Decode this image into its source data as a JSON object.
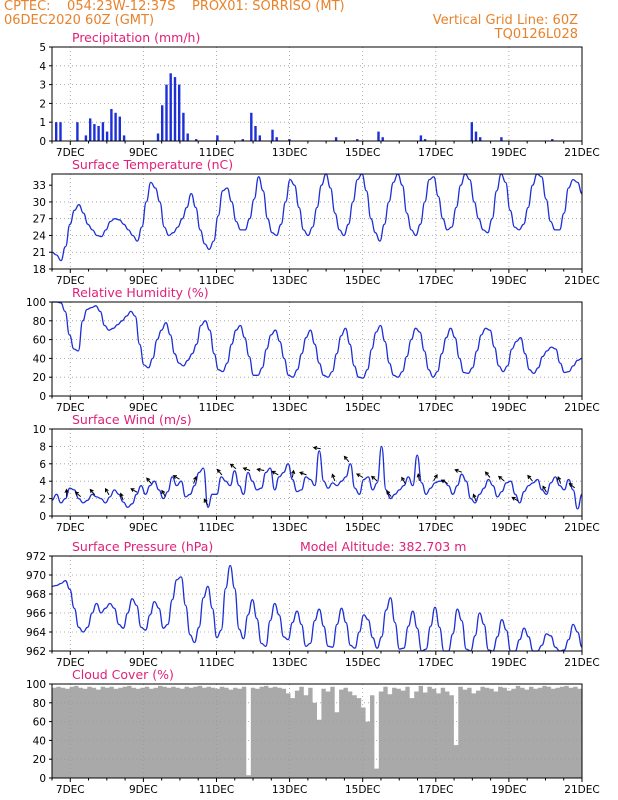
{
  "header": {
    "line1": "CPTEC:    054:23W-12:37S    PROX01: SORRISO (MT)",
    "line2": "06DEC2020 60Z (GMT)",
    "grid_note": "Vertical Grid Line: 60Z",
    "code": "TQ0126L028"
  },
  "colors": {
    "header": "#e8822a",
    "title": "#e0207a",
    "series": "#1d2fd6",
    "cloud": "#a9a9a9",
    "grid": "#9a9a9a"
  },
  "x_ticks": [
    "7DEC",
    "9DEC",
    "11DEC",
    "13DEC",
    "15DEC",
    "17DEC",
    "19DEC",
    "21DEC"
  ],
  "chart_data": [
    {
      "type": "bar",
      "title": "Precipitation (mm/h)",
      "xlim": [
        "06DEC2020 12Z",
        "21DEC2020 00Z"
      ],
      "ylim": [
        0,
        5
      ],
      "yticks": [
        "0",
        "1",
        "2",
        "3",
        "4",
        "5"
      ],
      "grid": true,
      "time_step_hours": 3,
      "values": [
        0,
        1,
        1,
        0,
        0,
        0,
        1,
        0,
        0.3,
        1.2,
        0.9,
        0.8,
        1,
        0.5,
        1.7,
        1.5,
        1.3,
        0.3,
        0,
        0,
        0,
        0,
        0,
        0,
        0,
        0.4,
        1.9,
        3,
        3.6,
        3.4,
        3,
        1.5,
        0.4,
        0,
        0.1,
        0,
        0,
        0,
        0,
        0.3,
        0,
        0,
        0,
        0,
        0,
        0.1,
        0,
        1.5,
        0.8,
        0.3,
        0,
        0,
        0.6,
        0.2,
        0,
        0,
        0.1,
        0,
        0,
        0,
        0,
        0,
        0,
        0,
        0,
        0,
        0,
        0.2,
        0,
        0,
        0,
        0,
        0.1,
        0,
        0,
        0,
        0,
        0.5,
        0.2,
        0,
        0,
        0,
        0,
        0,
        0,
        0,
        0,
        0.3,
        0.1,
        0,
        0,
        0,
        0,
        0,
        0,
        0,
        0,
        0,
        0,
        1,
        0.5,
        0.2,
        0,
        0,
        0,
        0,
        0.2,
        0,
        0,
        0,
        0,
        0,
        0,
        0,
        0,
        0,
        0,
        0,
        0.1,
        0,
        0,
        0,
        0,
        0,
        0,
        0
      ]
    },
    {
      "type": "line",
      "title": "Surface Temperature (nC)",
      "ylim": [
        18,
        35
      ],
      "yticks": [
        "18",
        "21",
        "24",
        "27",
        "30",
        "33"
      ],
      "grid": true,
      "values": [
        21,
        20.5,
        19.5,
        22,
        26,
        28.5,
        29.5,
        28,
        26,
        25,
        24,
        23.8,
        25,
        26.5,
        27,
        26.8,
        26,
        25,
        24,
        23,
        25.5,
        30,
        33.5,
        32.5,
        30,
        25.5,
        24,
        24.5,
        25.5,
        27,
        29,
        31.5,
        29,
        25,
        22.5,
        21.5,
        23,
        27.5,
        32,
        32.5,
        30,
        26.5,
        25,
        25,
        27,
        30.5,
        34.5,
        32,
        27,
        24.5,
        24,
        26,
        30,
        34,
        33,
        29,
        25,
        24,
        25.5,
        29,
        33,
        35,
        32.5,
        28,
        25,
        24,
        26,
        30,
        34,
        35.5,
        32,
        27,
        24.5,
        23,
        26,
        30,
        33.5,
        35.5,
        33,
        28,
        25,
        24,
        26,
        30,
        34,
        34.5,
        31,
        27,
        25,
        25.5,
        29,
        33,
        35,
        34,
        30,
        27,
        25,
        24.5,
        27,
        32,
        35,
        33.5,
        28.5,
        25.5,
        25,
        26,
        29,
        33,
        35,
        34.5,
        30.5,
        26.5,
        25,
        25,
        28,
        32.5,
        34,
        33.5,
        31.5
      ]
    },
    {
      "type": "line",
      "title": "Relative Humidity (%)",
      "ylim": [
        0,
        100
      ],
      "yticks": [
        "0",
        "20",
        "40",
        "60",
        "80",
        "100"
      ],
      "grid": true,
      "values": [
        100,
        100,
        99,
        90,
        65,
        50,
        48,
        80,
        92,
        94,
        96,
        90,
        75,
        70,
        72,
        76,
        80,
        85,
        90,
        85,
        55,
        33,
        30,
        40,
        60,
        70,
        78,
        65,
        45,
        35,
        32,
        38,
        45,
        55,
        75,
        80,
        70,
        45,
        28,
        26,
        35,
        55,
        70,
        75,
        62,
        42,
        22,
        22,
        30,
        50,
        65,
        70,
        58,
        40,
        22,
        20,
        28,
        45,
        62,
        70,
        55,
        35,
        22,
        20,
        26,
        45,
        64,
        72,
        55,
        32,
        20,
        19,
        28,
        50,
        68,
        75,
        58,
        35,
        22,
        20,
        26,
        42,
        60,
        72,
        68,
        48,
        28,
        20,
        26,
        45,
        62,
        72,
        62,
        40,
        25,
        24,
        30,
        48,
        65,
        72,
        70,
        52,
        32,
        26,
        32,
        50,
        58,
        62,
        45,
        28,
        24,
        30,
        42,
        48,
        52,
        50,
        35,
        25,
        26,
        32,
        38,
        40
      ]
    },
    {
      "type": "line",
      "title": "Surface Wind (m/s)",
      "ylim": [
        0,
        10
      ],
      "yticks": [
        "0",
        "2",
        "4",
        "6",
        "8",
        "10"
      ],
      "grid": true,
      "values": [
        1.8,
        2.5,
        1.5,
        2,
        3.2,
        3,
        2,
        1.5,
        1.8,
        2.5,
        2.2,
        2,
        1.5,
        2.2,
        3,
        2.5,
        1.6,
        1,
        1.4,
        2.5,
        3.5,
        2.5,
        3.5,
        4,
        3,
        2,
        2.8,
        4.5,
        3.5,
        4,
        2.2,
        2.5,
        3.5,
        5,
        5.5,
        1,
        2.5,
        2.5,
        4.5,
        4,
        3.5,
        5.2,
        3.5,
        2.5,
        5,
        4,
        3,
        3.2,
        5,
        5.5,
        3,
        4.5,
        5,
        6,
        4.2,
        2.8,
        3,
        4.5,
        4.2,
        3.5,
        7.5,
        4,
        3.2,
        3.8,
        3.5,
        4,
        4.5,
        6,
        3.2,
        2.5,
        4.2,
        4.5,
        3,
        3.8,
        8,
        3,
        2,
        2.5,
        3,
        3.5,
        4.5,
        3.5,
        7,
        3.8,
        2.5,
        3.2,
        3.8,
        4,
        4,
        3.5,
        2.5,
        3.5,
        4.8,
        4,
        2,
        1.5,
        2.5,
        3.2,
        4.2,
        3.5,
        2.2,
        2.8,
        3.8,
        4,
        2.5,
        1.5,
        2.8,
        3.5,
        3.8,
        4.2,
        3,
        2.5,
        3.8,
        4.5,
        3.5,
        3,
        4.2,
        3,
        0.8,
        2.5
      ]
    },
    {
      "type": "line",
      "title": "Surface Pressure (hPa)",
      "subtitle": "Model Altitude: 382.703 m",
      "ylim": [
        962,
        972
      ],
      "yticks": [
        "962",
        "964",
        "966",
        "968",
        "970",
        "972"
      ],
      "grid": true,
      "values": [
        968.8,
        968.9,
        969.1,
        969.4,
        968.5,
        966.5,
        964.5,
        964,
        964.5,
        966,
        967,
        966,
        966.5,
        967,
        966.5,
        964.8,
        964.4,
        966,
        967.5,
        966.8,
        964.5,
        964.2,
        965.8,
        967.2,
        966.5,
        964.4,
        964.8,
        967.4,
        969.5,
        969.8,
        966.8,
        963.7,
        962.9,
        964.5,
        967.6,
        968.8,
        966.5,
        963.4,
        964.2,
        968.6,
        971,
        968.6,
        964.3,
        963.3,
        965.8,
        967.4,
        965.4,
        962.8,
        962.5,
        965.2,
        967,
        965.8,
        963.5,
        963.2,
        965,
        966.2,
        964.8,
        962.5,
        962.8,
        965.2,
        966.4,
        964.6,
        962.5,
        962.4,
        964.8,
        966.5,
        965,
        962.6,
        962.3,
        964,
        965.8,
        965.3,
        963.4,
        962.3,
        963.5,
        966.3,
        967.6,
        965,
        962.2,
        962.3,
        964.6,
        966.2,
        964.4,
        961.9,
        962.2,
        964.6,
        966.6,
        964.5,
        962,
        962,
        963.8,
        966.4,
        965.2,
        962.2,
        962,
        963.6,
        966,
        964.8,
        962.1,
        962,
        963.5,
        965.3,
        964.2,
        961.9,
        962,
        963.2,
        964.4,
        963.5,
        961.9,
        961.9,
        962.6,
        963.8,
        963.6,
        962.4,
        962,
        962.1,
        963.2,
        964.8,
        964,
        962.4
      ]
    },
    {
      "type": "bar",
      "title": "Cloud Cover (%)",
      "ylim": [
        0,
        100
      ],
      "yticks": [
        "0",
        "20",
        "40",
        "60",
        "80",
        "100"
      ],
      "grid": true,
      "values": [
        96,
        97,
        96,
        95,
        97,
        98,
        96,
        95,
        97,
        96,
        94,
        97,
        96,
        97,
        95,
        96,
        97,
        98,
        96,
        95,
        96,
        97,
        95,
        96,
        98,
        97,
        96,
        97,
        96,
        95,
        97,
        96,
        97,
        98,
        96,
        97,
        96,
        95,
        97,
        96,
        94,
        96,
        95,
        97,
        3,
        96,
        95,
        97,
        98,
        96,
        97,
        96,
        95,
        90,
        85,
        93,
        97,
        88,
        96,
        80,
        62,
        95,
        92,
        97,
        70,
        94,
        96,
        92,
        88,
        85,
        75,
        60,
        88,
        10,
        92,
        97,
        89,
        96,
        95,
        93,
        97,
        85,
        92,
        98,
        91,
        97,
        95,
        90,
        96,
        92,
        88,
        35,
        97,
        94,
        96,
        90,
        93,
        97,
        96,
        95,
        92,
        97,
        96,
        93,
        95,
        98,
        96,
        94,
        97,
        95,
        96,
        98,
        97,
        95,
        96,
        97,
        98,
        96,
        97,
        95,
        98
      ]
    }
  ]
}
